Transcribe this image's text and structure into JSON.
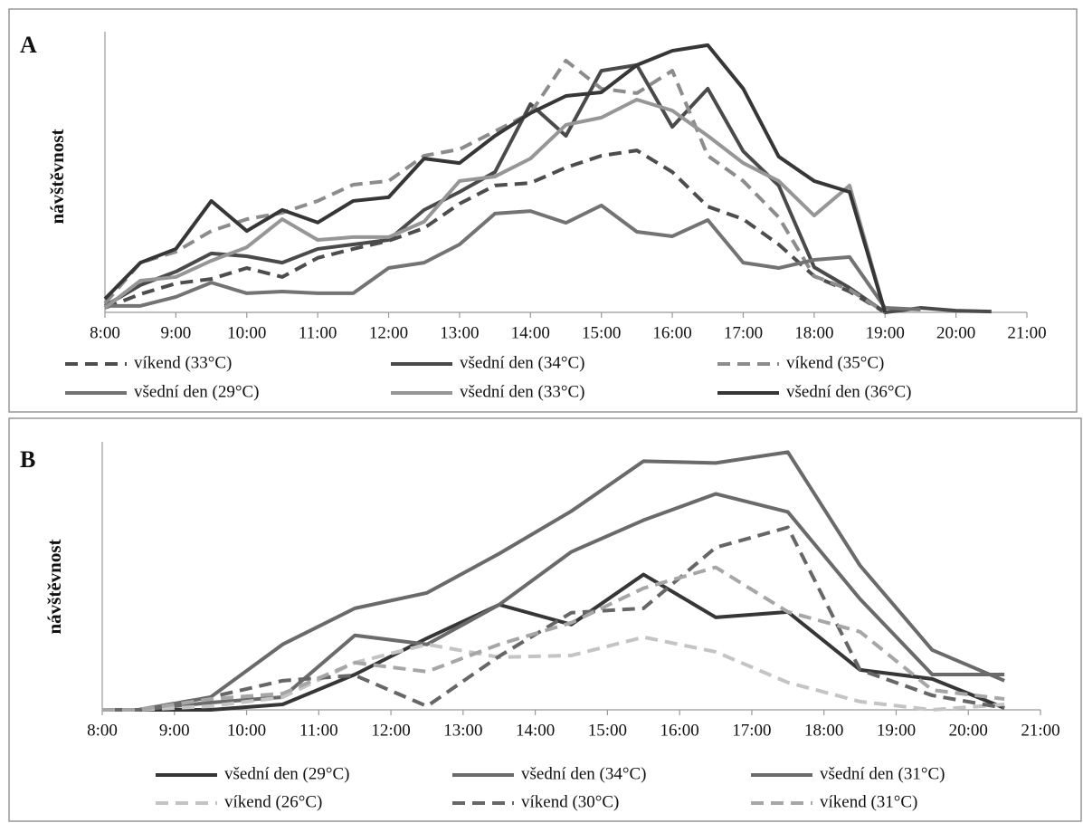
{
  "chart_data": [
    {
      "type": "line",
      "label": "A",
      "y_label": "návštěvnost",
      "x": [
        8,
        8.5,
        9,
        9.5,
        10,
        10.5,
        11,
        11.5,
        12,
        12.5,
        13,
        13.5,
        14,
        14.5,
        15,
        15.5,
        16,
        16.5,
        17,
        17.5,
        18,
        18.5,
        19,
        19.5,
        20,
        20.5
      ],
      "xlim": [
        8,
        21
      ],
      "xticks": [
        {
          "value": 8,
          "label": "8:00"
        },
        {
          "value": 9,
          "label": "9:00"
        },
        {
          "value": 10,
          "label": "10:00"
        },
        {
          "value": 11,
          "label": "11:00"
        },
        {
          "value": 12,
          "label": "12:00"
        },
        {
          "value": 13,
          "label": "13:00"
        },
        {
          "value": 14,
          "label": "14:00"
        },
        {
          "value": 15,
          "label": "15:00"
        },
        {
          "value": 16,
          "label": "16:00"
        },
        {
          "value": 17,
          "label": "17:00"
        },
        {
          "value": 18,
          "label": "18:00"
        },
        {
          "value": 19,
          "label": "19:00"
        },
        {
          "value": 20,
          "label": "20:00"
        },
        {
          "value": 21,
          "label": "21:00"
        }
      ],
      "ylim": [
        0,
        100
      ],
      "series": [
        {
          "name": "víkend (33°C)",
          "color": "#4d4d4d",
          "dashed": true,
          "values": [
            1.6,
            6.5,
            10.3,
            11.9,
            15.8,
            12.6,
            19.4,
            22.6,
            25.5,
            30,
            38.7,
            45.2,
            46.1,
            51.6,
            55.8,
            57.7,
            50,
            37.7,
            33.2,
            24.2,
            12.9,
            7.4,
            0,
            null,
            null,
            null
          ]
        },
        {
          "name": "všední den (34°C)",
          "color": "#4a4a4a",
          "dashed": false,
          "values": [
            2.3,
            9.7,
            14.5,
            21,
            20,
            17.7,
            22.6,
            24.2,
            25.8,
            36.5,
            42.9,
            50,
            74.2,
            62.9,
            86.1,
            88.1,
            66.1,
            79.7,
            57.4,
            45.2,
            16.1,
            8.7,
            0,
            1.6,
            0.6,
            0.3
          ]
        },
        {
          "name": "víkend (35°C)",
          "color": "#8c8c8c",
          "dashed": true,
          "values": [
            3.2,
            17.7,
            21.6,
            29,
            33.2,
            35.5,
            39.7,
            45.5,
            46.8,
            55.8,
            58.1,
            64.5,
            71,
            89.7,
            79.7,
            78.1,
            86.1,
            55.8,
            46.8,
            33.9,
            12.9,
            8.1,
            0,
            null,
            null,
            null
          ]
        },
        {
          "name": "všední den (29°C)",
          "color": "#737373",
          "dashed": false,
          "values": [
            2.3,
            2.3,
            5.5,
            10.6,
            6.8,
            7.4,
            6.8,
            6.8,
            15.8,
            17.7,
            24.2,
            35.2,
            36.1,
            31.9,
            38.1,
            28.7,
            27.1,
            32.9,
            17.7,
            15.8,
            18.7,
            19.7,
            1.6,
            1,
            null,
            null
          ]
        },
        {
          "name": "všední den (33°C)",
          "color": "#969696",
          "dashed": false,
          "values": [
            1.6,
            11.3,
            12.6,
            18.4,
            23.2,
            33.2,
            25.8,
            26.8,
            26.8,
            32.3,
            46.8,
            48.4,
            54.8,
            66.8,
            69.4,
            75.8,
            71.9,
            62.9,
            53.2,
            46.8,
            34.5,
            45.2,
            0,
            null,
            null,
            null
          ]
        },
        {
          "name": "všední den (36°C)",
          "color": "#363636",
          "dashed": false,
          "values": [
            4.8,
            17.7,
            22.6,
            39.7,
            29,
            36.5,
            32,
            39.7,
            41,
            54.8,
            53.2,
            62.9,
            71,
            77.1,
            78.4,
            88.1,
            93.2,
            95.2,
            79.7,
            55.5,
            46.8,
            42.9,
            0,
            null,
            null,
            null
          ]
        }
      ]
    },
    {
      "type": "line",
      "label": "B",
      "y_label": "návštěvnost",
      "x": [
        8,
        8.5,
        9.5,
        10.5,
        11.5,
        12.5,
        13.5,
        14.5,
        15.5,
        16.5,
        17.5,
        18.5,
        19.5,
        20.5
      ],
      "xlim": [
        8,
        21
      ],
      "xticks": [
        {
          "value": 8,
          "label": "8:00"
        },
        {
          "value": 9,
          "label": "9:00"
        },
        {
          "value": 10,
          "label": "10:00"
        },
        {
          "value": 11,
          "label": "11:00"
        },
        {
          "value": 12,
          "label": "12:00"
        },
        {
          "value": 13,
          "label": "13:00"
        },
        {
          "value": 14,
          "label": "14:00"
        },
        {
          "value": 15,
          "label": "15:00"
        },
        {
          "value": 16,
          "label": "16:00"
        },
        {
          "value": 17,
          "label": "17:00"
        },
        {
          "value": 18,
          "label": "18:00"
        },
        {
          "value": 19,
          "label": "19:00"
        },
        {
          "value": 20,
          "label": "20:00"
        },
        {
          "value": 21,
          "label": "21:00"
        }
      ],
      "ylim": [
        0,
        104
      ],
      "series": [
        {
          "name": "všední den (29°C)",
          "color": "#363636",
          "dashed": false,
          "values": [
            0,
            0,
            0,
            2.1,
            13.7,
            27.8,
            40.8,
            33.1,
            52.5,
            35.9,
            38,
            15.5,
            12,
            0.7
          ]
        },
        {
          "name": "všední den (34°C)",
          "color": "#6a6a6a",
          "dashed": false,
          "values": [
            0,
            0,
            4.9,
            25.4,
            39.4,
            45.4,
            60.6,
            77.1,
            96.5,
            95.8,
            100,
            56,
            23.2,
            11.3
          ]
        },
        {
          "name": "všední den (31°C)",
          "color": "#6a6a6a",
          "dashed": false,
          "values": [
            0,
            0,
            2.8,
            4.9,
            28.9,
            25.4,
            40.8,
            61.3,
            73.6,
            83.8,
            76.8,
            43,
            13.7,
            13.7
          ]
        },
        {
          "name": "víkend (26°C)",
          "color": "#c4c4c4",
          "dashed": true,
          "values": [
            0,
            0,
            1.4,
            4.9,
            18.3,
            25.4,
            20.4,
            21.1,
            28.2,
            22.5,
            10.6,
            3.2,
            0,
            2.1
          ]
        },
        {
          "name": "víkend (30°C)",
          "color": "#666666",
          "dashed": true,
          "values": [
            0,
            0,
            4.9,
            11.3,
            13.4,
            1.4,
            20.8,
            37.7,
            39.4,
            63,
            70.8,
            15.5,
            5.6,
            0.7
          ]
        },
        {
          "name": "víkend (31°C)",
          "color": "#a6a6a6",
          "dashed": true,
          "values": [
            0,
            0,
            4.2,
            6.3,
            18.3,
            14.8,
            25.4,
            33.8,
            47.2,
            55.3,
            38,
            30.3,
            7.7,
            4.2
          ]
        }
      ]
    }
  ]
}
